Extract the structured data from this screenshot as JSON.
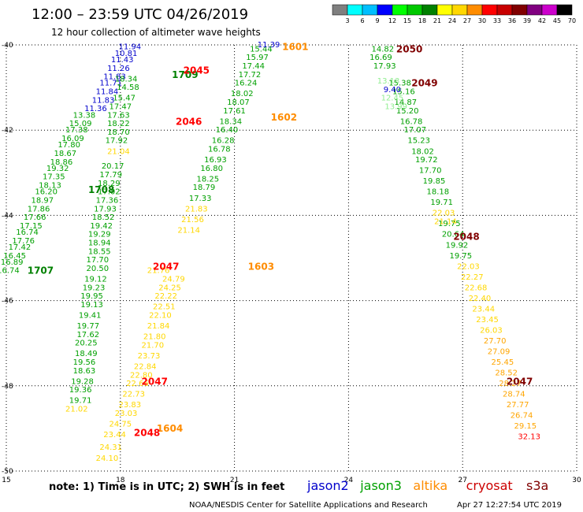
{
  "header": {
    "title": "12:00 – 23:59 UTC 04/26/2019",
    "subtitle": "12 hour collection of altimeter wave heights"
  },
  "color_scale": {
    "labels": [
      "3",
      "6",
      "9",
      "12",
      "15",
      "18",
      "21",
      "24",
      "27",
      "30",
      "33",
      "36",
      "39",
      "42",
      "45",
      "70",
      "(ft)"
    ],
    "colors": [
      "#7f7f7f",
      "#00ffff",
      "#00bfff",
      "#0000ff",
      "#00ff00",
      "#00c800",
      "#008000",
      "#ffff00",
      "#ffd700",
      "#ff8c00",
      "#ff0000",
      "#c80000",
      "#800000",
      "#800080",
      "#cc00cc",
      "#000000"
    ]
  },
  "note": "note:  1) Time is in UTC;  2) SWH is in feet",
  "satellites": [
    {
      "name": "jason2",
      "color": "#0000cc"
    },
    {
      "name": "jason3",
      "color": "#00a000"
    },
    {
      "name": "altika",
      "color": "#ff8c00"
    },
    {
      "name": "cryosat",
      "color": "#cc0000"
    },
    {
      "name": "s3a",
      "color": "#800000"
    }
  ],
  "footer": {
    "credit": "NOAA/NESDIS Center for Satellite Applications and Research",
    "timestamp": "Apr 27 12:27:54 UTC 2019"
  },
  "chart_data": {
    "type": "scatter",
    "x_ticks": [
      "15",
      "18",
      "21",
      "24",
      "27",
      "30"
    ],
    "y_ticks": [
      "-40",
      "-42",
      "-44",
      "-46",
      "-48",
      "-50"
    ],
    "xlim": [
      15,
      30
    ],
    "ylim": [
      -50,
      -40
    ],
    "grid": true,
    "pass_labels": [
      {
        "text": "1601",
        "x": 22.6,
        "y": -40.05,
        "color": "#ff8c00"
      },
      {
        "text": "1602",
        "x": 22.3,
        "y": -41.7,
        "color": "#ff8c00"
      },
      {
        "text": "1603",
        "x": 21.7,
        "y": -45.2,
        "color": "#ff8c00"
      },
      {
        "text": "1604",
        "x": 19.3,
        "y": -49.0,
        "color": "#ff8c00"
      },
      {
        "text": "1707",
        "x": 15.9,
        "y": -45.3,
        "color": "#008000"
      },
      {
        "text": "1708",
        "x": 17.5,
        "y": -43.4,
        "color": "#008000"
      },
      {
        "text": "1709",
        "x": 19.7,
        "y": -40.7,
        "color": "#008000"
      },
      {
        "text": "2045",
        "x": 20.0,
        "y": -40.6,
        "color": "#ff0000"
      },
      {
        "text": "2046",
        "x": 19.8,
        "y": -41.8,
        "color": "#ff0000"
      },
      {
        "text": "2047",
        "x": 19.2,
        "y": -45.2,
        "color": "#ff0000"
      },
      {
        "text": "2047",
        "x": 18.9,
        "y": -47.9,
        "color": "#ff0000"
      },
      {
        "text": "2048",
        "x": 18.7,
        "y": -49.1,
        "color": "#ff0000"
      },
      {
        "text": "2047",
        "x": 28.5,
        "y": -47.9,
        "color": "#800000"
      },
      {
        "text": "2048",
        "x": 27.1,
        "y": -44.5,
        "color": "#800000"
      },
      {
        "text": "2049",
        "x": 26.0,
        "y": -40.9,
        "color": "#800000"
      },
      {
        "text": "2050",
        "x": 25.6,
        "y": -40.1,
        "color": "#800000"
      }
    ],
    "series": [
      {
        "color": "#00a000",
        "points": [
          [
            15.05,
            -45.3,
            "16.74"
          ],
          [
            15.15,
            -45.1,
            "16.89"
          ],
          [
            15.22,
            -44.95,
            "16.45"
          ],
          [
            15.35,
            -44.75,
            "17.42"
          ],
          [
            15.45,
            -44.6,
            "17.76"
          ],
          [
            15.55,
            -44.4,
            "16.74"
          ],
          [
            15.65,
            -44.25,
            "17.15"
          ],
          [
            15.75,
            -44.05,
            "17.66"
          ],
          [
            15.85,
            -43.85,
            "17.86"
          ],
          [
            15.95,
            -43.65,
            "18.97"
          ],
          [
            16.05,
            -43.45,
            "16.20"
          ],
          [
            16.15,
            -43.3,
            "18.13"
          ],
          [
            16.25,
            -43.1,
            "17.35"
          ],
          [
            16.35,
            -42.9,
            "19.32"
          ],
          [
            16.45,
            -42.75,
            "18.86"
          ],
          [
            16.55,
            -42.55,
            "18.67"
          ],
          [
            16.65,
            -42.35,
            "17.80"
          ],
          [
            16.75,
            -42.2,
            "16.09"
          ],
          [
            16.85,
            -42.0,
            "17.38"
          ],
          [
            16.95,
            -41.85,
            "15.09"
          ],
          [
            17.05,
            -41.65,
            "13.38"
          ]
        ]
      },
      {
        "color": "#0000cc",
        "points": [
          [
            17.35,
            -41.5,
            "11.36"
          ],
          [
            17.55,
            -41.3,
            "11.83"
          ],
          [
            17.65,
            -41.1,
            "11.84"
          ],
          [
            17.75,
            -40.9,
            "11.71"
          ],
          [
            17.85,
            -40.75,
            "11.83"
          ],
          [
            17.95,
            -40.55,
            "11.26"
          ],
          [
            18.05,
            -40.35,
            "11.43"
          ],
          [
            18.15,
            -40.2,
            "10.81"
          ],
          [
            18.25,
            -40.05,
            "11.94"
          ]
        ]
      },
      {
        "color": "#00a000",
        "points": [
          [
            18.15,
            -40.8,
            "18.34"
          ],
          [
            18.2,
            -41.0,
            "14.58"
          ],
          [
            18.1,
            -41.25,
            "15.47"
          ],
          [
            18.0,
            -41.45,
            "17.47"
          ],
          [
            17.95,
            -41.65,
            "17.63"
          ],
          [
            17.95,
            -41.85,
            "18.22"
          ],
          [
            17.95,
            -42.05,
            "18.70"
          ],
          [
            17.9,
            -42.25,
            "17.92"
          ],
          [
            17.8,
            -42.85,
            "20.17"
          ],
          [
            17.75,
            -43.05,
            "17.79"
          ],
          [
            17.7,
            -43.25,
            "18.29"
          ],
          [
            17.7,
            -43.45,
            "17.02"
          ],
          [
            17.65,
            -43.65,
            "17.36"
          ],
          [
            17.6,
            -43.85,
            "17.93"
          ],
          [
            17.55,
            -44.05,
            "18.52"
          ],
          [
            17.5,
            -44.25,
            "19.42"
          ],
          [
            17.45,
            -44.45,
            "19.29"
          ],
          [
            17.45,
            -44.65,
            "18.94"
          ],
          [
            17.45,
            -44.85,
            "18.55"
          ],
          [
            17.4,
            -45.05,
            "17.70"
          ],
          [
            17.4,
            -45.25,
            "20.50"
          ],
          [
            17.35,
            -45.5,
            "19.12"
          ],
          [
            17.3,
            -45.7,
            "19.23"
          ],
          [
            17.25,
            -45.9,
            "19.95"
          ],
          [
            17.25,
            -46.1,
            "19.13"
          ],
          [
            17.2,
            -46.35,
            "19.41"
          ],
          [
            17.15,
            -46.6,
            "19.77"
          ],
          [
            17.15,
            -46.8,
            "17.62"
          ],
          [
            17.1,
            -47.0,
            "20.25"
          ],
          [
            17.1,
            -47.25,
            "18.49"
          ],
          [
            17.05,
            -47.45,
            "19.56"
          ],
          [
            17.05,
            -47.65,
            "18.63"
          ],
          [
            17.0,
            -47.9,
            "19.28"
          ],
          [
            16.95,
            -48.1,
            "19.36"
          ],
          [
            16.95,
            -48.35,
            "19.71"
          ]
        ]
      },
      {
        "color": "#ffd700",
        "points": [
          [
            17.95,
            -42.5,
            "21.04"
          ],
          [
            19.0,
            -45.3,
            "21.76"
          ],
          [
            19.4,
            -45.5,
            "24.79"
          ],
          [
            19.3,
            -45.7,
            "24.25"
          ],
          [
            19.2,
            -45.9,
            "22.22"
          ],
          [
            19.15,
            -46.15,
            "22.51"
          ],
          [
            19.05,
            -46.35,
            "22.10"
          ],
          [
            19.0,
            -46.6,
            "21.84"
          ],
          [
            18.9,
            -46.85,
            "21.80"
          ],
          [
            18.85,
            -47.05,
            "21.70"
          ],
          [
            18.75,
            -47.3,
            "23.73"
          ],
          [
            18.65,
            -47.55,
            "22.84"
          ],
          [
            18.55,
            -47.75,
            "22.80"
          ],
          [
            18.45,
            -47.95,
            "22.66"
          ],
          [
            18.35,
            -48.2,
            "22.73"
          ],
          [
            18.25,
            -48.45,
            "23.83"
          ],
          [
            18.15,
            -48.65,
            "23.03"
          ],
          [
            18.0,
            -48.9,
            "24.75"
          ],
          [
            17.85,
            -49.15,
            "23.44"
          ],
          [
            17.75,
            -49.45,
            "24.31"
          ],
          [
            17.65,
            -49.7,
            "24.10"
          ],
          [
            16.85,
            -48.55,
            "21.02"
          ]
        ]
      },
      {
        "color": "#00a000",
        "points": [
          [
            21.7,
            -40.1,
            "15.44"
          ],
          [
            21.6,
            -40.3,
            "15.97"
          ],
          [
            21.5,
            -40.5,
            "17.44"
          ],
          [
            21.4,
            -40.7,
            "17.72"
          ],
          [
            21.3,
            -40.9,
            "16.24"
          ],
          [
            21.2,
            -41.15,
            "18.02"
          ],
          [
            21.1,
            -41.35,
            "18.07"
          ],
          [
            21.0,
            -41.55,
            "17.61"
          ],
          [
            20.9,
            -41.8,
            "18.34"
          ],
          [
            20.8,
            -42.0,
            "16.40"
          ],
          [
            20.7,
            -42.25,
            "16.28"
          ],
          [
            20.6,
            -42.45,
            "16.78"
          ],
          [
            20.5,
            -42.7,
            "16.93"
          ],
          [
            20.4,
            -42.9,
            "16.80"
          ],
          [
            20.3,
            -43.15,
            "18.25"
          ],
          [
            20.2,
            -43.35,
            "18.79"
          ],
          [
            20.1,
            -43.6,
            "17.33"
          ]
        ]
      },
      {
        "color": "#0000cc",
        "points": [
          [
            21.9,
            -40.0,
            "11.39"
          ]
        ]
      },
      {
        "color": "#ffd700",
        "points": [
          [
            20.0,
            -43.85,
            "21.83"
          ],
          [
            19.9,
            -44.1,
            "21.56"
          ],
          [
            19.8,
            -44.35,
            "21.14"
          ]
        ]
      },
      {
        "color": "#00a000",
        "points": [
          [
            24.9,
            -40.1,
            "14.82"
          ],
          [
            24.85,
            -40.3,
            "16.69"
          ],
          [
            24.95,
            -40.5,
            "17.93"
          ],
          [
            25.5,
            -41.35,
            "14.87"
          ],
          [
            25.55,
            -41.55,
            "15.20"
          ],
          [
            25.65,
            -41.8,
            "16.78"
          ],
          [
            25.75,
            -42.0,
            "17.07"
          ],
          [
            25.85,
            -42.25,
            "15.23"
          ],
          [
            25.95,
            -42.5,
            "18.02"
          ],
          [
            26.05,
            -42.7,
            "19.72"
          ],
          [
            26.15,
            -42.95,
            "17.70"
          ],
          [
            26.25,
            -43.2,
            "19.85"
          ],
          [
            26.35,
            -43.45,
            "18.18"
          ],
          [
            26.45,
            -43.7,
            "19.71"
          ],
          [
            26.65,
            -44.2,
            "19.75"
          ],
          [
            26.75,
            -44.45,
            "20.64"
          ],
          [
            26.85,
            -44.7,
            "19.92"
          ],
          [
            26.95,
            -44.95,
            "19.75"
          ],
          [
            25.45,
            -41.1,
            "15.16"
          ],
          [
            25.35,
            -40.9,
            "15.38"
          ]
        ]
      },
      {
        "color": "#90ee90",
        "points": [
          [
            25.05,
            -40.85,
            "13.13"
          ],
          [
            25.15,
            -41.25,
            "12.45"
          ],
          [
            25.25,
            -41.45,
            "13.99"
          ]
        ]
      },
      {
        "color": "#0000cc",
        "points": [
          [
            25.15,
            -41.05,
            "9.40"
          ]
        ]
      },
      {
        "color": "#ffd700",
        "points": [
          [
            26.5,
            -43.95,
            "22.03"
          ],
          [
            26.55,
            -44.15,
            "21.14"
          ],
          [
            27.15,
            -45.2,
            "22.03"
          ],
          [
            27.25,
            -45.45,
            "22.27"
          ],
          [
            27.35,
            -45.7,
            "22.68"
          ],
          [
            27.45,
            -45.95,
            "22.40"
          ],
          [
            27.55,
            -46.2,
            "23.44"
          ],
          [
            27.65,
            -46.45,
            "23.45"
          ],
          [
            27.75,
            -46.7,
            "26.03"
          ]
        ]
      },
      {
        "color": "#ffa500",
        "points": [
          [
            27.85,
            -46.95,
            "27.70"
          ],
          [
            27.95,
            -47.2,
            "27.09"
          ],
          [
            28.05,
            -47.45,
            "25.45"
          ],
          [
            28.15,
            -47.7,
            "28.52"
          ],
          [
            28.25,
            -47.95,
            "28.27"
          ],
          [
            28.35,
            -48.2,
            "28.74"
          ],
          [
            28.45,
            -48.45,
            "27.77"
          ],
          [
            28.55,
            -48.7,
            "26.74"
          ],
          [
            28.65,
            -48.95,
            "29.15"
          ]
        ]
      },
      {
        "color": "#ff0000",
        "points": [
          [
            28.75,
            -49.2,
            "32.13"
          ]
        ]
      }
    ]
  }
}
